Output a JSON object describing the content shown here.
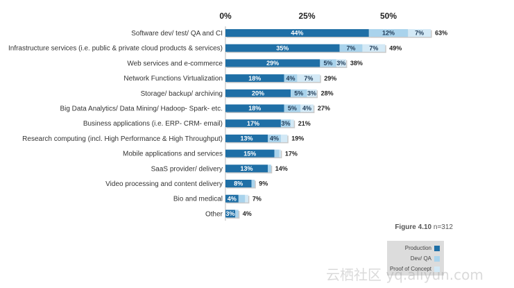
{
  "chart_data": {
    "type": "bar",
    "orientation": "horizontal",
    "stacked": true,
    "x_ticks": [
      "0%",
      "25%",
      "50%"
    ],
    "xlim": [
      0,
      65
    ],
    "categories": [
      "Software dev/ test/ QA and CI",
      "Infrastructure services (i.e. public & private cloud products & services)",
      "Web services and e-commerce",
      "Network Functions Virtualization",
      "Storage/  backup/ archiving",
      "Big Data Analytics/ Data Mining/ Hadoop- Spark- etc.",
      "Business applications (i.e. ERP- CRM- email)",
      "Research computing (incl. High Performance & High Throughput)",
      "Mobile applications and services",
      "SaaS provider/ delivery",
      "Video processing and content delivery",
      "Bio and medical",
      "Other"
    ],
    "series": [
      {
        "name": "Production",
        "values": [
          44,
          35,
          29,
          18,
          20,
          18,
          17,
          13,
          15,
          13,
          8,
          4,
          3
        ],
        "labels": [
          "44%",
          "35%",
          "29%",
          "18%",
          "20%",
          "18%",
          "17%",
          "13%",
          "15%",
          "13%",
          "8%",
          "4%",
          "3%"
        ]
      },
      {
        "name": "Dev/ QA",
        "values": [
          12,
          7,
          5,
          4,
          5,
          5,
          3,
          4,
          1.5,
          1,
          1,
          2,
          1
        ],
        "labels": [
          "12%",
          "7%",
          "5%",
          "4%",
          "5%",
          "5%",
          "3%",
          "4%",
          "",
          "",
          "",
          "",
          ""
        ]
      },
      {
        "name": "Proof of Concept",
        "values": [
          7,
          7,
          3,
          7,
          3,
          4,
          1,
          2,
          0.5,
          0,
          0,
          1,
          0
        ],
        "labels": [
          "7%",
          "7%",
          "3%",
          "7%",
          "3%",
          "4%",
          "",
          "",
          "",
          "",
          "",
          "",
          ""
        ]
      }
    ],
    "totals": [
      "63%",
      "49%",
      "38%",
      "29%",
      "28%",
      "27%",
      "21%",
      "19%",
      "17%",
      "14%",
      "9%",
      "7%",
      "4%"
    ],
    "legend_position": "bottom-right",
    "colors": {
      "Production": "#1f6fa6",
      "Dev/ QA": "#a9d3ec",
      "Proof of Concept": "#d3e9f6",
      "label_on_dark": "#ffffff",
      "label_on_light": "#1f3b57"
    }
  },
  "caption": {
    "figure": "Figure 4.10",
    "n": "n=312"
  },
  "legend": {
    "items": [
      "Production",
      "Dev/ QA",
      "Proof of Concept"
    ]
  },
  "watermark": "云栖社区 yq.aliyun.com"
}
